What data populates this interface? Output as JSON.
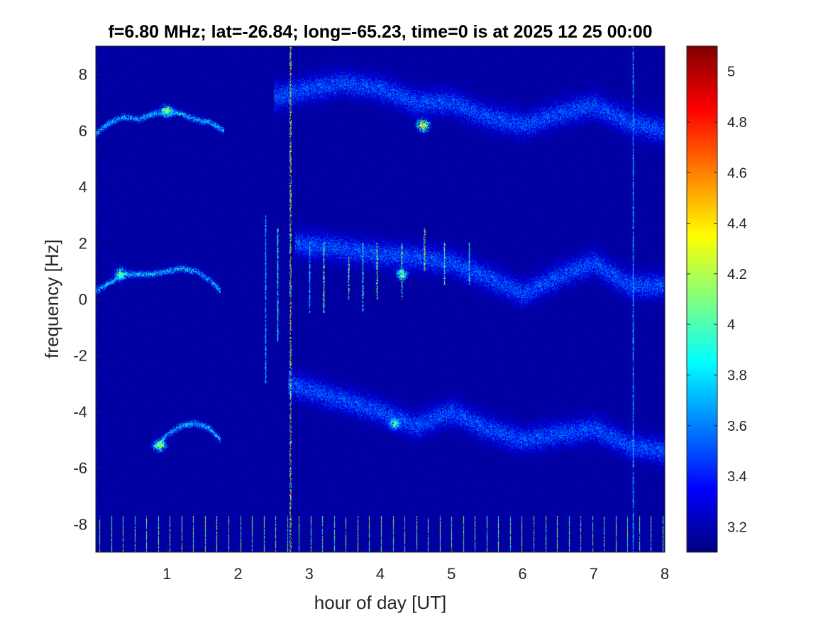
{
  "chart_data": {
    "type": "heatmap",
    "title": "f=6.80 MHz;  lat=-26.84; long=-65.23, time=0 is at 2025 12 25 00:00",
    "xlabel": "hour of day [UT]",
    "ylabel": "frequency [Hz]",
    "xlim": [
      0,
      8
    ],
    "ylim": [
      -9,
      9
    ],
    "xticks": [
      1,
      2,
      3,
      4,
      5,
      6,
      7,
      8
    ],
    "xtick_labels": [
      "1",
      "2",
      "3",
      "4",
      "5",
      "6",
      "7",
      "8"
    ],
    "yticks": [
      8,
      6,
      4,
      2,
      0,
      -2,
      -4,
      -6,
      -8
    ],
    "ytick_labels": [
      "8",
      "6",
      "4",
      "2",
      "0",
      "-2",
      "-4",
      "-6",
      "-8"
    ],
    "colormap": "jet",
    "clim": [
      3.1,
      5.1
    ],
    "colorbar_ticks": [
      5,
      4.8,
      4.6,
      4.4,
      4.2,
      4,
      3.8,
      3.6,
      3.4,
      3.2
    ],
    "colorbar_tick_labels": [
      "5",
      "4.8",
      "4.6",
      "4.4",
      "4.2",
      "4",
      "3.8",
      "3.6",
      "3.4",
      "3.2"
    ],
    "background_value": 3.15,
    "traces": [
      {
        "id": "upper-echo-early",
        "points": [
          [
            0.0,
            5.9
          ],
          [
            0.2,
            6.3
          ],
          [
            0.4,
            6.5
          ],
          [
            0.6,
            6.4
          ],
          [
            0.8,
            6.6
          ],
          [
            1.0,
            6.7
          ],
          [
            1.2,
            6.6
          ],
          [
            1.4,
            6.4
          ],
          [
            1.6,
            6.3
          ],
          [
            1.8,
            6.0
          ]
        ],
        "intensity": 3.8,
        "spread": 0.15
      },
      {
        "id": "center-echo-early",
        "points": [
          [
            0.0,
            0.3
          ],
          [
            0.2,
            0.6
          ],
          [
            0.4,
            0.9
          ],
          [
            0.6,
            0.9
          ],
          [
            0.8,
            0.9
          ],
          [
            1.0,
            1.0
          ],
          [
            1.2,
            1.1
          ],
          [
            1.4,
            1.0
          ],
          [
            1.6,
            0.7
          ],
          [
            1.75,
            0.3
          ]
        ],
        "intensity": 3.8,
        "spread": 0.15
      },
      {
        "id": "lower-echo-early",
        "points": [
          [
            0.8,
            -5.3
          ],
          [
            0.9,
            -5.1
          ],
          [
            1.0,
            -4.8
          ],
          [
            1.2,
            -4.5
          ],
          [
            1.4,
            -4.4
          ],
          [
            1.6,
            -4.6
          ],
          [
            1.75,
            -5.0
          ]
        ],
        "intensity": 3.8,
        "spread": 0.15
      },
      {
        "id": "upper-echo-late",
        "points": [
          [
            2.5,
            7.2
          ],
          [
            3.0,
            7.5
          ],
          [
            3.5,
            7.7
          ],
          [
            4.0,
            7.5
          ],
          [
            4.5,
            7.0
          ],
          [
            5.0,
            7.0
          ],
          [
            5.5,
            6.5
          ],
          [
            6.0,
            6.2
          ],
          [
            6.5,
            6.6
          ],
          [
            7.0,
            6.9
          ],
          [
            7.5,
            6.3
          ],
          [
            8.0,
            6.0
          ]
        ],
        "intensity": 3.55,
        "spread": 0.6
      },
      {
        "id": "center-echo-late",
        "points": [
          [
            2.8,
            2.0
          ],
          [
            3.5,
            1.8
          ],
          [
            4.0,
            1.6
          ],
          [
            4.5,
            1.5
          ],
          [
            5.0,
            1.3
          ],
          [
            5.5,
            0.8
          ],
          [
            6.0,
            0.2
          ],
          [
            6.5,
            0.8
          ],
          [
            7.0,
            1.3
          ],
          [
            7.5,
            0.5
          ],
          [
            8.0,
            0.5
          ]
        ],
        "intensity": 3.55,
        "spread": 0.6
      },
      {
        "id": "lower-echo-late",
        "points": [
          [
            2.7,
            -3.0
          ],
          [
            3.5,
            -3.6
          ],
          [
            4.0,
            -4.0
          ],
          [
            4.5,
            -4.5
          ],
          [
            5.0,
            -4.0
          ],
          [
            5.5,
            -4.6
          ],
          [
            6.0,
            -5.0
          ],
          [
            6.5,
            -4.8
          ],
          [
            7.0,
            -4.6
          ],
          [
            7.5,
            -5.2
          ],
          [
            8.0,
            -5.4
          ]
        ],
        "intensity": 3.55,
        "spread": 0.6
      }
    ],
    "hotspots": [
      {
        "x": 1.0,
        "y": 6.7,
        "value": 4.4
      },
      {
        "x": 0.35,
        "y": 0.9,
        "value": 4.3
      },
      {
        "x": 0.9,
        "y": -5.2,
        "value": 4.4
      },
      {
        "x": 4.6,
        "y": 6.2,
        "value": 4.6
      },
      {
        "x": 4.3,
        "y": 0.9,
        "value": 4.2
      },
      {
        "x": 4.2,
        "y": -4.4,
        "value": 4.2
      }
    ],
    "vertical_streaks": [
      {
        "x": 2.73,
        "ymin": -9,
        "ymax": 9,
        "value": 5.0
      },
      {
        "x": 2.38,
        "ymin": -3,
        "ymax": 3,
        "value": 4.0
      },
      {
        "x": 2.55,
        "ymin": -1.5,
        "ymax": 2.5,
        "value": 4.2
      },
      {
        "x": 3.0,
        "ymin": -0.5,
        "ymax": 2.0,
        "value": 4.0
      },
      {
        "x": 3.2,
        "ymin": -0.5,
        "ymax": 2.0,
        "value": 4.6
      },
      {
        "x": 3.55,
        "ymin": 0.0,
        "ymax": 1.5,
        "value": 4.6
      },
      {
        "x": 3.75,
        "ymin": -0.5,
        "ymax": 2.0,
        "value": 4.2
      },
      {
        "x": 3.95,
        "ymin": 0.0,
        "ymax": 2.0,
        "value": 4.7
      },
      {
        "x": 4.3,
        "ymin": 0.0,
        "ymax": 2.0,
        "value": 4.6
      },
      {
        "x": 4.62,
        "ymin": 1.0,
        "ymax": 2.5,
        "value": 4.8
      },
      {
        "x": 4.9,
        "ymin": 0.5,
        "ymax": 2.0,
        "value": 4.3
      },
      {
        "x": 5.25,
        "ymin": 0.5,
        "ymax": 2.0,
        "value": 4.2
      },
      {
        "x": 7.55,
        "ymin": -9,
        "ymax": 9,
        "value": 3.9
      }
    ],
    "bottom_comb": {
      "x_start": 0.05,
      "x_end": 8.0,
      "spacing": 0.165,
      "ymin": -9,
      "ymax": -7.7,
      "value": 4.3
    }
  }
}
